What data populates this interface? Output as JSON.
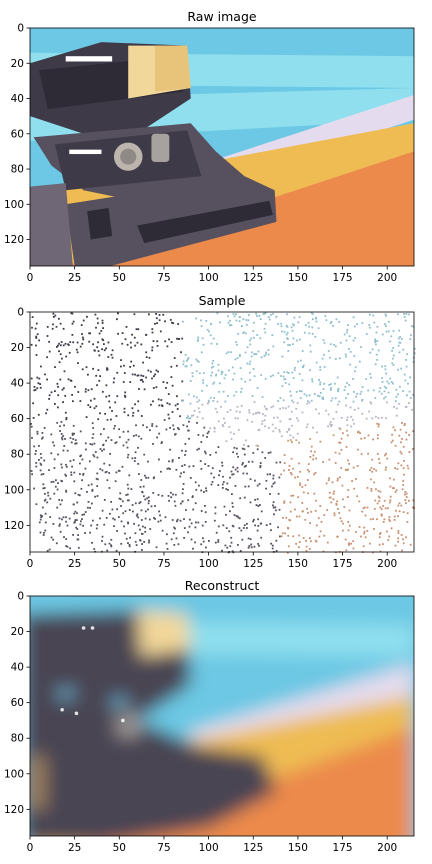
{
  "panels": [
    {
      "title": "Raw image",
      "kind": "raw",
      "xlim": [
        0,
        215
      ],
      "ylim": [
        135,
        0
      ],
      "xticks": [
        0,
        25,
        50,
        75,
        100,
        125,
        150,
        175,
        200
      ],
      "yticks": [
        0,
        20,
        40,
        60,
        80,
        100,
        120
      ]
    },
    {
      "title": "Sample",
      "kind": "sample",
      "xlim": [
        0,
        215
      ],
      "ylim": [
        135,
        0
      ],
      "xticks": [
        0,
        25,
        50,
        75,
        100,
        125,
        150,
        175,
        200
      ],
      "yticks": [
        0,
        20,
        40,
        60,
        80,
        100,
        120
      ]
    },
    {
      "title": "Reconstruct",
      "kind": "reconstruct",
      "xlim": [
        0,
        215
      ],
      "ylim": [
        135,
        0
      ],
      "xticks": [
        0,
        25,
        50,
        75,
        100,
        125,
        150,
        175,
        200
      ],
      "yticks": [
        0,
        20,
        40,
        60,
        80,
        100,
        120
      ]
    }
  ],
  "colors": {
    "sky_light": "#8fdfee",
    "sky": "#6cc8e4",
    "lavender": "#e4dcee",
    "yellow": "#eebc52",
    "orange": "#ec8a4c",
    "camera_dark": "#3f3a48",
    "camera_mid": "#57505e",
    "camera_light": "#6f6776",
    "window": "#f2d79a",
    "lens": "#bbb5ad"
  }
}
